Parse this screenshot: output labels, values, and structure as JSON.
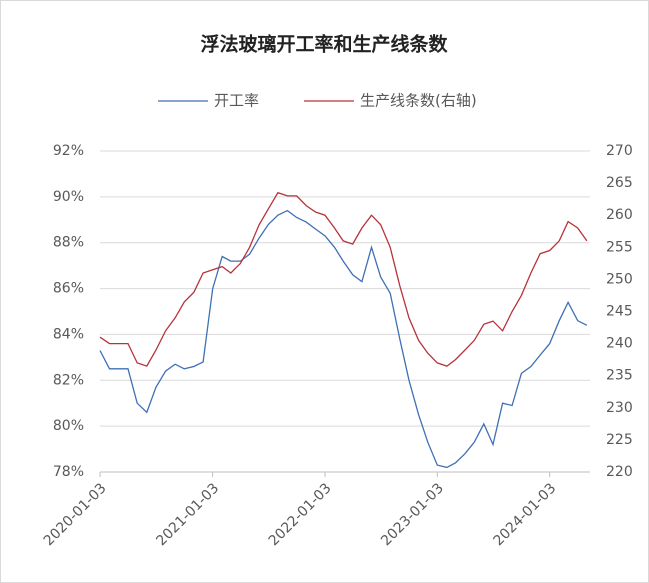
{
  "chart_data": {
    "type": "line",
    "title": "浮法玻璃开工率和生产线条数",
    "x": [
      "2020-01-03",
      "2020-02-03",
      "2020-03-03",
      "2020-04-03",
      "2020-05-03",
      "2020-06-03",
      "2020-07-03",
      "2020-08-03",
      "2020-09-03",
      "2020-10-03",
      "2020-11-03",
      "2020-12-03",
      "2021-01-03",
      "2021-02-03",
      "2021-03-03",
      "2021-04-03",
      "2021-05-03",
      "2021-06-03",
      "2021-07-03",
      "2021-08-03",
      "2021-09-03",
      "2021-10-03",
      "2021-11-03",
      "2021-12-03",
      "2022-01-03",
      "2022-02-03",
      "2022-03-03",
      "2022-04-03",
      "2022-05-03",
      "2022-06-03",
      "2022-07-03",
      "2022-08-03",
      "2022-09-03",
      "2022-10-03",
      "2022-11-03",
      "2022-12-03",
      "2023-01-03",
      "2023-02-03",
      "2023-03-03",
      "2023-04-03",
      "2023-05-03",
      "2023-06-03",
      "2023-07-03",
      "2023-08-03",
      "2023-09-03",
      "2023-10-03",
      "2023-11-03",
      "2023-12-03",
      "2024-01-03",
      "2024-02-03",
      "2024-03-03",
      "2024-04-03",
      "2024-05-03"
    ],
    "series": [
      {
        "name": "开工率",
        "color": "#3f6fb5",
        "values": [
          83.3,
          82.5,
          82.5,
          82.5,
          81.0,
          80.6,
          81.7,
          82.4,
          82.7,
          82.5,
          82.6,
          82.8,
          86.0,
          87.4,
          87.2,
          87.2,
          87.5,
          88.2,
          88.8,
          89.2,
          89.4,
          89.1,
          88.9,
          88.6,
          88.3,
          87.8,
          87.2,
          86.6,
          86.3,
          87.8,
          86.5,
          85.8,
          83.8,
          82.0,
          80.5,
          79.3,
          78.3,
          78.2,
          78.4,
          78.8,
          79.3,
          80.1,
          79.2,
          81.0,
          80.9,
          82.3,
          82.6,
          83.1,
          83.6,
          84.6,
          85.4,
          84.6,
          84.4
        ]
      },
      {
        "name": "生产线条数(右轴)",
        "color": "#b8323a",
        "axis": "y2",
        "values": [
          241,
          240,
          240,
          240,
          237,
          236.5,
          239,
          242,
          244,
          246.5,
          248,
          251,
          251.5,
          252,
          251,
          252.5,
          255,
          258.5,
          261,
          263.5,
          263,
          263,
          261.5,
          260.5,
          260,
          258,
          256,
          255.5,
          258,
          260,
          258.5,
          255,
          249,
          244,
          240.5,
          238.5,
          237,
          236.5,
          237.5,
          239,
          240.5,
          243,
          243.5,
          242,
          245,
          247.5,
          251,
          254,
          254.5,
          256,
          259,
          258,
          256
        ]
      }
    ],
    "xlim": [
      "2020-01-03",
      "2024-05-13"
    ],
    "xticks": [
      "2020-01-03",
      "2021-01-03",
      "2022-01-03",
      "2023-01-03",
      "2024-01-03"
    ],
    "ylim": [
      78,
      92
    ],
    "yticks": [
      {
        "value": 78,
        "label": "78%"
      },
      {
        "value": 80,
        "label": "80%"
      },
      {
        "value": 82,
        "label": "82%"
      },
      {
        "value": 84,
        "label": "84%"
      },
      {
        "value": 86,
        "label": "86%"
      },
      {
        "value": 88,
        "label": "88%"
      },
      {
        "value": 90,
        "label": "90%"
      },
      {
        "value": 92,
        "label": "92%"
      }
    ],
    "y2lim": [
      220,
      270
    ],
    "y2ticks": [
      220,
      225,
      230,
      235,
      240,
      245,
      250,
      255,
      260,
      265,
      270
    ],
    "grid": true,
    "legend": "top"
  }
}
